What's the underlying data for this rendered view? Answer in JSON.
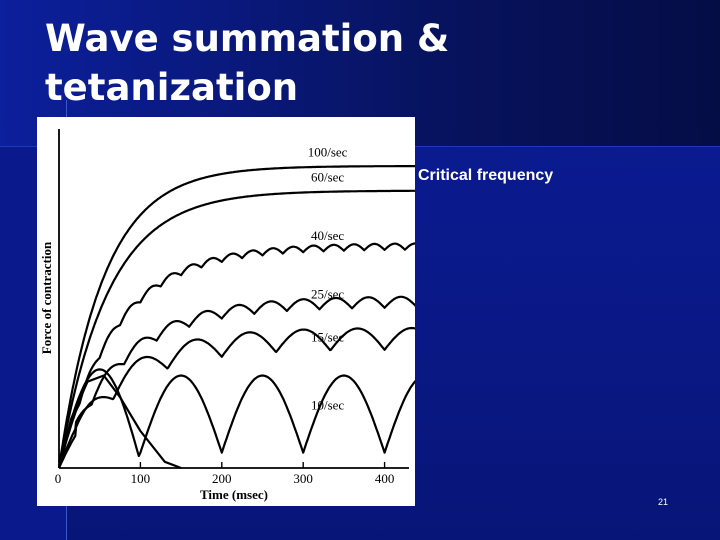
{
  "slide": {
    "title_lines": [
      "Wave summation &",
      "tetanization"
    ],
    "annotation": "Critical frequency",
    "slide_number": "21"
  },
  "chart_data": {
    "type": "line",
    "xlabel": "Time (msec)",
    "ylabel": "Force of contraction",
    "x_ticks": [
      "0",
      "100",
      "200",
      "300",
      "400"
    ],
    "xlim": [
      0,
      430
    ],
    "ylim": [
      0,
      1.1
    ],
    "grid": false,
    "series": [
      {
        "name": "single twitch",
        "freq_hz": 0,
        "points": [
          [
            0,
            0
          ],
          [
            15,
            0.16
          ],
          [
            35,
            0.28
          ],
          [
            55,
            0.3
          ],
          [
            75,
            0.23
          ],
          [
            100,
            0.12
          ],
          [
            130,
            0.02
          ],
          [
            150,
            0
          ]
        ]
      },
      {
        "name": "10/sec",
        "freq_hz": 10
      },
      {
        "name": "15/sec",
        "freq_hz": 15
      },
      {
        "name": "25/sec",
        "freq_hz": 25
      },
      {
        "name": "40/sec",
        "freq_hz": 40
      },
      {
        "name": "60/sec",
        "freq_hz": 60
      },
      {
        "name": "100/sec",
        "freq_hz": 100
      }
    ],
    "label_values": {
      "100/sec": [
        330,
        1.01
      ],
      "60/sec": [
        330,
        0.93
      ],
      "40/sec": [
        330,
        0.74
      ],
      "25/sec": [
        330,
        0.55
      ],
      "15/sec": [
        330,
        0.41
      ],
      "10/sec": [
        330,
        0.19
      ]
    },
    "curve_params": {
      "100/sec": {
        "plateau": 0.98,
        "tau": 55
      },
      "60/sec": {
        "plateau": 0.9,
        "tau": 60
      },
      "40/sec": {
        "plateau": 0.72,
        "tau": 70,
        "ripple": 0.02
      },
      "25/sec": {
        "plateau": 0.54,
        "tau": 75,
        "ripple": 0.035
      },
      "15/sec": {
        "plateau": 0.42,
        "tau": 70,
        "ripple": 0.07
      },
      "10/sec": {
        "peak": 0.3,
        "trough": 0.05
      }
    }
  }
}
